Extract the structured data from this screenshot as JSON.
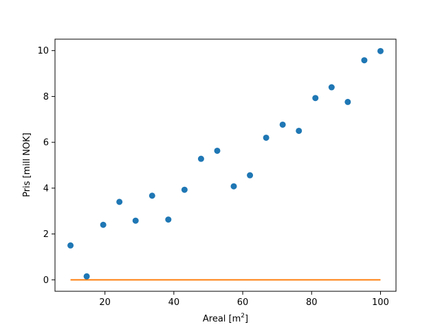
{
  "chart_data": {
    "type": "scatter",
    "title": "",
    "xlabel": "Areal [m",
    "xlabel_sup": "2",
    "xlabel_end": "]",
    "ylabel": "Pris [mill NOK]",
    "xlim": [
      5.5,
      104.5
    ],
    "ylim": [
      -0.5,
      10.5
    ],
    "xticks": [
      20,
      40,
      60,
      80,
      100
    ],
    "yticks": [
      0,
      2,
      4,
      6,
      8,
      10
    ],
    "grid": false,
    "legend": "none",
    "series": [
      {
        "kind": "scatter",
        "color": "#1f77b4",
        "x": [
          10.0,
          14.7,
          19.5,
          24.2,
          28.9,
          33.7,
          38.4,
          43.1,
          47.9,
          52.6,
          57.4,
          62.1,
          66.8,
          71.6,
          76.3,
          81.1,
          85.8,
          90.5,
          95.3,
          100.0
        ],
        "y": [
          1.5,
          0.15,
          2.4,
          3.4,
          2.58,
          3.67,
          2.63,
          3.93,
          5.28,
          5.63,
          4.08,
          4.56,
          6.2,
          6.77,
          6.5,
          7.93,
          8.4,
          7.76,
          9.58,
          9.98
        ]
      },
      {
        "kind": "line",
        "color": "#ff7f0e",
        "x": [
          10,
          100
        ],
        "y": [
          0,
          0
        ]
      }
    ]
  }
}
